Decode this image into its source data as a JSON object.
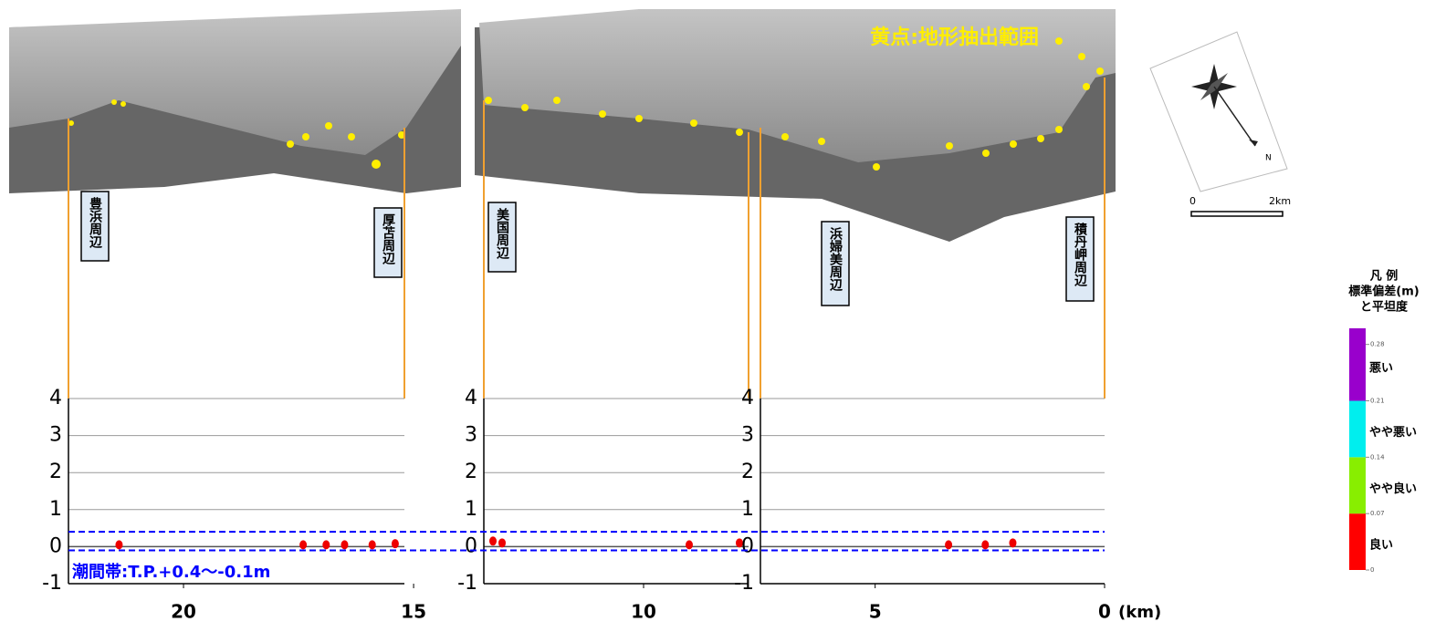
{
  "map": {
    "annotation": "黄点:地形抽出範囲",
    "places": [
      "豊浜周辺",
      "厚苫周辺",
      "美国周辺",
      "浜婦美周辺",
      "積丹岬周辺"
    ],
    "scale_bar": [
      "0",
      "2km"
    ],
    "north": "N"
  },
  "chart_data": [
    {
      "type": "scatter",
      "xlim": [
        22.5,
        15.2
      ],
      "xticks": [
        20,
        15
      ],
      "ylim": [
        -1,
        4
      ],
      "yticks": [
        -1,
        0,
        1,
        2,
        3,
        4
      ],
      "grid": true,
      "series": [
        {
          "color": "#ee0000",
          "x": [
            21.4,
            17.4,
            16.9,
            16.5,
            15.9,
            15.4
          ],
          "values": [
            0.05,
            0.05,
            0.05,
            0.05,
            0.05,
            0.08
          ]
        }
      ]
    },
    {
      "type": "scatter",
      "xlim": [
        13.5,
        7.7
      ],
      "xticks": [
        10
      ],
      "ylim": [
        -1,
        4
      ],
      "yticks": [
        -1,
        0,
        1,
        2,
        3,
        4
      ],
      "grid": true,
      "series": [
        {
          "color": "#ee0000",
          "x": [
            13.3,
            13.1,
            9.0,
            7.9
          ],
          "values": [
            0.15,
            0.1,
            0.05,
            0.1
          ]
        }
      ]
    },
    {
      "type": "scatter",
      "xlim": [
        7.5,
        0
      ],
      "xticks": [
        5,
        0
      ],
      "ylim": [
        -1,
        4
      ],
      "yticks": [
        -1,
        0,
        1,
        2,
        3,
        4
      ],
      "grid": true,
      "series": [
        {
          "color": "#ee0000",
          "x": [
            3.4,
            2.6,
            2.0
          ],
          "values": [
            0.05,
            0.05,
            0.1
          ]
        }
      ]
    }
  ],
  "x_unit": "(km)",
  "tidal_band": {
    "label": "潮間帯:T.P.+0.4～-0.1m",
    "values": [
      0.4,
      -0.1
    ],
    "color": "#0000ff"
  },
  "legend": {
    "title": [
      "凡 例",
      "標準偏差(m)",
      "と平坦度"
    ],
    "ylim": [
      0,
      0.3
    ],
    "ticks": [
      0,
      0.07,
      0.14,
      0.21,
      0.28
    ],
    "edges": [
      0,
      0.07,
      0.14,
      0.21,
      0.3
    ],
    "labels": [
      "良い",
      "やや良い",
      "やや悪い",
      "悪い"
    ],
    "colors": [
      "#ff0000",
      "#88ee00",
      "#00eeee",
      "#9900cc"
    ]
  }
}
